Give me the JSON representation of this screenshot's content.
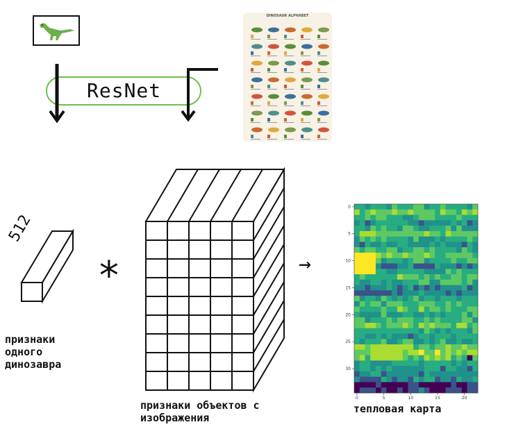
{
  "resnet": {
    "label": "ResNet"
  },
  "poster": {
    "title": "DINOSAUR ALPHABET"
  },
  "single_feature": {
    "dim": "512",
    "caption": "признаки одного динозавра"
  },
  "operator": {
    "multiply": "*",
    "arrow": "→"
  },
  "image_features": {
    "caption": "признаки объектов с изображения",
    "grid_rows": 9,
    "grid_cols": 5
  },
  "heatmap": {
    "caption": "тепловая карта",
    "x_ticks": [
      "0",
      "5",
      "10",
      "15",
      "20"
    ],
    "y_ticks": [
      "0",
      "5",
      "10",
      "15",
      "20",
      "25",
      "30"
    ]
  },
  "colors": {
    "resnet_outline": "#6cc04a",
    "dino_green": "#6ab04c"
  }
}
